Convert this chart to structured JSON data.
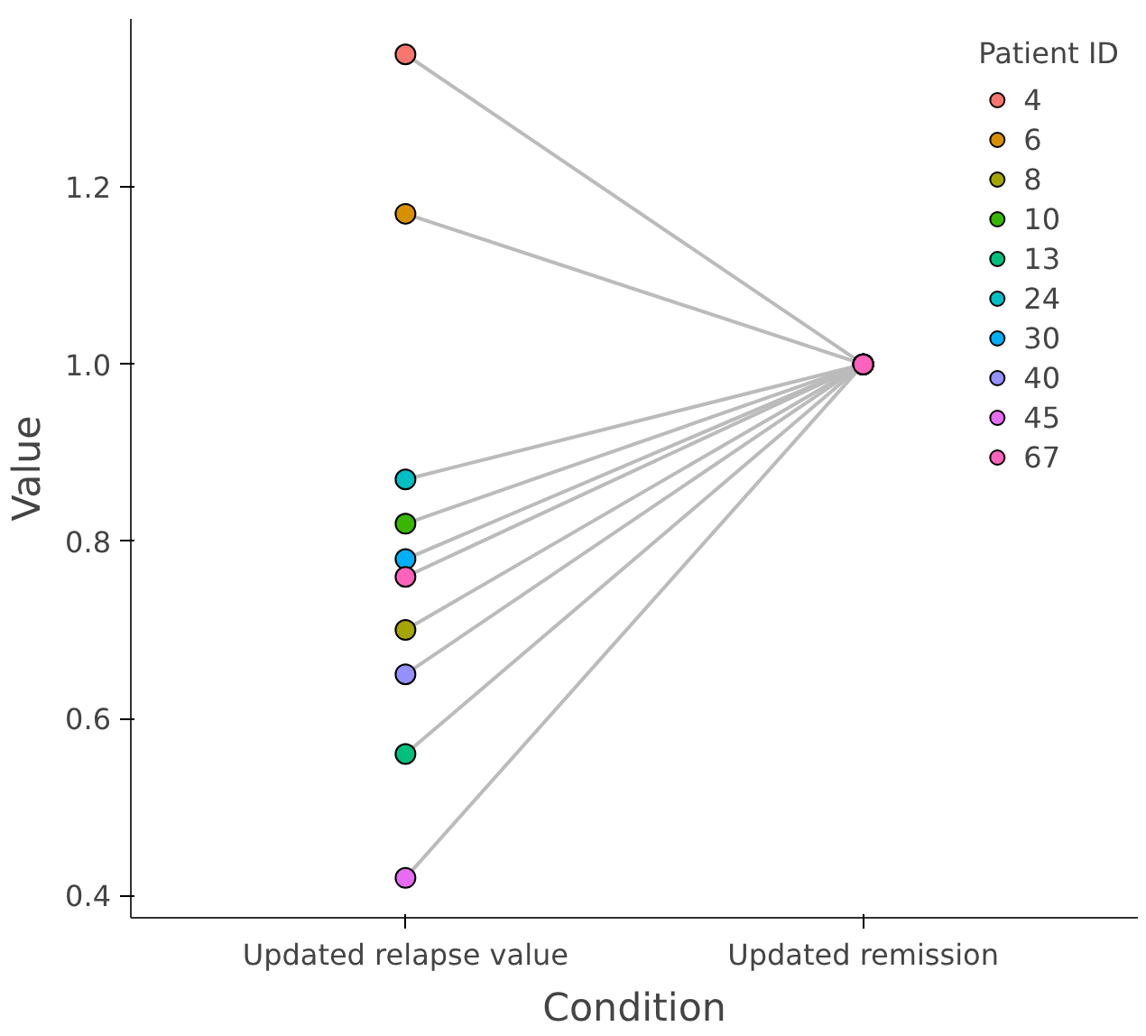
{
  "chart_data": {
    "type": "line",
    "xlabel": "Condition",
    "ylabel": "Value",
    "legend_title": "Patient ID",
    "categories": [
      "Updated relapse value",
      "Updated remission"
    ],
    "ylim": [
      0.375,
      1.39
    ],
    "yticks": [
      0.4,
      0.6,
      0.8,
      {
        "value": 1,
        "label": "1.0"
      },
      1.2
    ],
    "grid": false,
    "legend": "top right",
    "marker": "circle",
    "line_style": "solid",
    "series": [
      {
        "name": "4",
        "color": "#f8766d",
        "values": [
          1.35,
          1.0
        ]
      },
      {
        "name": "6",
        "color": "#d89000",
        "values": [
          1.17,
          1.0
        ]
      },
      {
        "name": "8",
        "color": "#a3a500",
        "values": [
          0.7,
          1.0
        ]
      },
      {
        "name": "10",
        "color": "#39b600",
        "values": [
          0.82,
          1.0
        ]
      },
      {
        "name": "13",
        "color": "#00bf7d",
        "values": [
          0.56,
          1.0
        ]
      },
      {
        "name": "24",
        "color": "#00bfc4",
        "values": [
          0.87,
          1.0
        ]
      },
      {
        "name": "30",
        "color": "#00b0f6",
        "values": [
          0.78,
          1.0
        ]
      },
      {
        "name": "40",
        "color": "#9590ff",
        "values": [
          0.65,
          1.0
        ]
      },
      {
        "name": "45",
        "color": "#e76bf3",
        "values": [
          0.42,
          1.0
        ]
      },
      {
        "name": "67",
        "color": "#ff62bc",
        "values": [
          0.76,
          1.0
        ]
      }
    ]
  }
}
